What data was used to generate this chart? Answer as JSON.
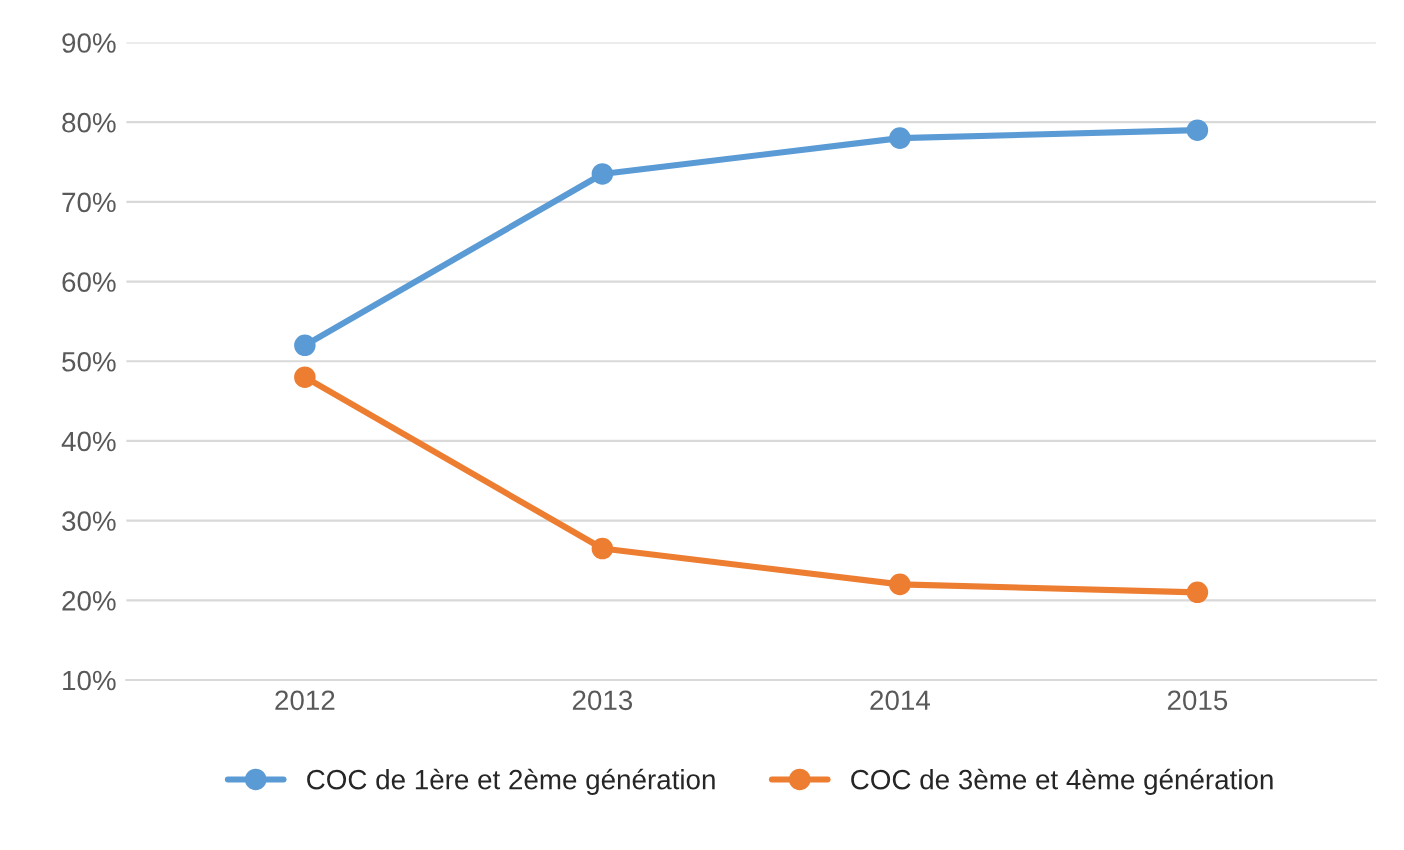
{
  "chart_data": {
    "type": "line",
    "categories": [
      "2012",
      "2013",
      "2014",
      "2015"
    ],
    "series": [
      {
        "name": "COC de 1ère et 2ème génération",
        "color": "#5b9bd5",
        "values": [
          52,
          73.5,
          78,
          79
        ]
      },
      {
        "name": "COC de 3ème et 4ème génération",
        "color": "#ed7d31",
        "values": [
          48,
          26.5,
          22,
          21
        ]
      }
    ],
    "ylim": [
      10,
      90
    ],
    "yticks": [
      {
        "value": 10,
        "label": "10%"
      },
      {
        "value": 20,
        "label": "20%"
      },
      {
        "value": 30,
        "label": "30%"
      },
      {
        "value": 40,
        "label": "40%"
      },
      {
        "value": 50,
        "label": "50%"
      },
      {
        "value": 60,
        "label": "60%"
      },
      {
        "value": 70,
        "label": "70%"
      },
      {
        "value": 80,
        "label": "80%"
      },
      {
        "value": 90,
        "label": "90%"
      }
    ],
    "grid": "y",
    "legend": "bottom",
    "marker": "circle",
    "line_style": "solid"
  }
}
